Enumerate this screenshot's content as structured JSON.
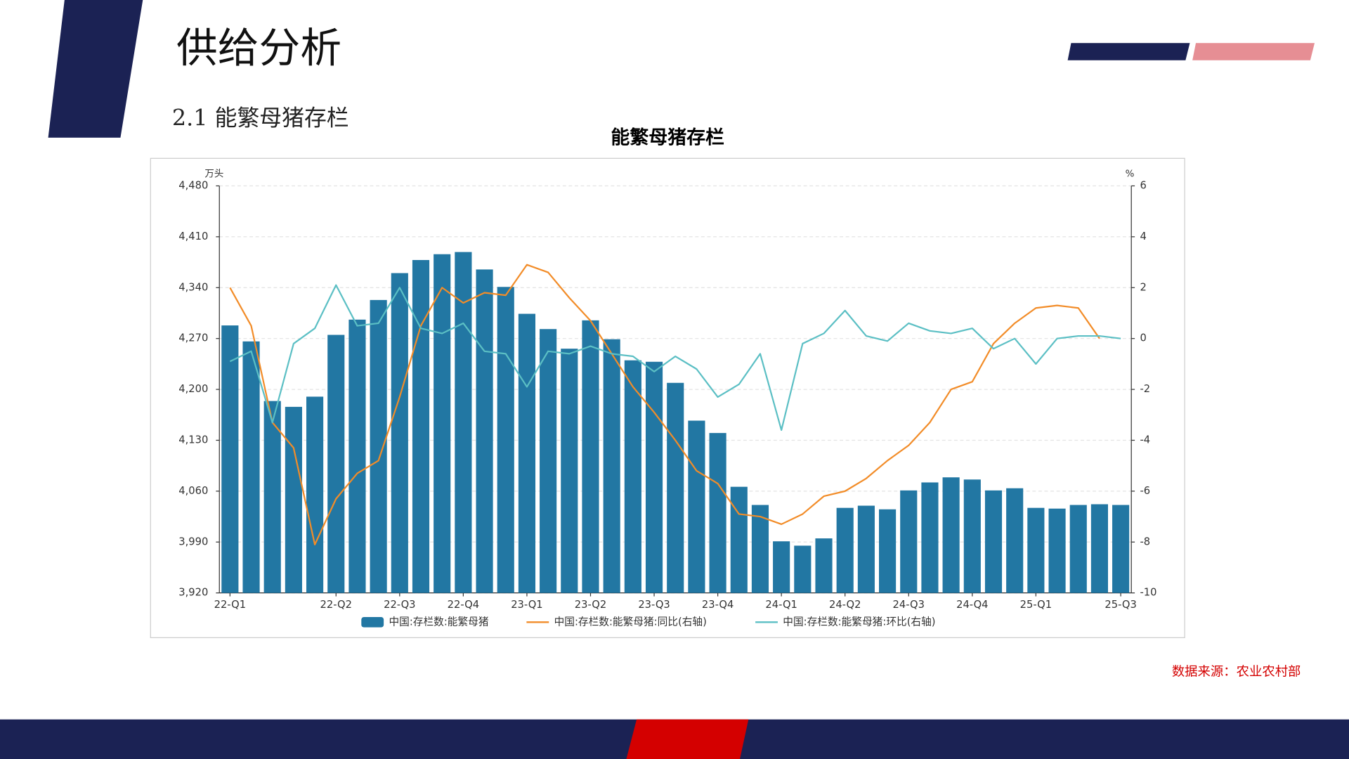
{
  "slide": {
    "title": "供给分析",
    "section": "2.1 能繁母猪存栏",
    "source": "数据来源：农业农村部"
  },
  "chart_data": {
    "type": "bar_line",
    "title": "能繁母猪存栏",
    "y_unit": "万头",
    "y2_unit": "%",
    "categories": [
      "22-Q1",
      null,
      null,
      null,
      null,
      "22-Q2",
      null,
      null,
      "22-Q3",
      null,
      null,
      "22-Q4",
      null,
      null,
      "23-Q1",
      null,
      null,
      "23-Q2",
      null,
      null,
      "23-Q3",
      null,
      null,
      "23-Q4",
      null,
      null,
      "24-Q1",
      null,
      null,
      "24-Q2",
      null,
      null,
      "24-Q3",
      null,
      null,
      "24-Q4",
      null,
      null,
      "25-Q1",
      null,
      null,
      null,
      "25-Q3"
    ],
    "series": [
      {
        "name": "中国:存栏数:能繁母猪",
        "type": "bar",
        "color": "#2277a3",
        "values": [
          4288,
          4266,
          4184,
          4176,
          4190,
          4275,
          4296,
          4323,
          4360,
          4378,
          4386,
          4389,
          4365,
          4341,
          4304,
          4283,
          4256,
          4295,
          4269,
          4240,
          4238,
          4209,
          4157,
          4140,
          4066,
          4041,
          3991,
          3985,
          3995,
          4037,
          4040,
          4035,
          4061,
          4072,
          4079,
          4076,
          4061,
          4064,
          4037,
          4036,
          4041,
          4042,
          4041
        ]
      },
      {
        "name": "中国:存栏数:能繁母猪:同比(右轴)",
        "type": "line",
        "axis": "y2",
        "color": "#f28c28",
        "values": [
          2.0,
          0.5,
          -3.3,
          -4.3,
          -8.1,
          -6.3,
          -5.3,
          -4.8,
          -2.3,
          0.5,
          2.0,
          1.4,
          1.8,
          1.7,
          2.9,
          2.6,
          1.6,
          0.7,
          -0.6,
          -1.9,
          -2.9,
          -4.0,
          -5.2,
          -5.7,
          -6.9,
          -7.0,
          -7.3,
          -6.9,
          -6.2,
          -6.0,
          -5.5,
          -4.8,
          -4.2,
          -3.3,
          -2.0,
          -1.7,
          -0.2,
          0.6,
          1.2,
          1.3,
          1.2,
          0.0,
          null
        ]
      },
      {
        "name": "中国:存栏数:能繁母猪:环比(右轴)",
        "type": "line",
        "axis": "y2",
        "color": "#5bbfc4",
        "values": [
          -0.9,
          -0.5,
          -3.3,
          -0.2,
          0.4,
          2.1,
          0.5,
          0.6,
          2.0,
          0.4,
          0.2,
          0.6,
          -0.5,
          -0.6,
          -1.9,
          -0.5,
          -0.6,
          -0.3,
          -0.6,
          -0.7,
          -1.3,
          -0.7,
          -1.2,
          -2.3,
          -1.8,
          -0.6,
          -3.6,
          -0.2,
          0.2,
          1.1,
          0.1,
          -0.1,
          0.6,
          0.3,
          0.2,
          0.4,
          -0.4,
          0.0,
          -1.0,
          0.0,
          0.1,
          0.1,
          0.0
        ]
      }
    ],
    "ylim": [
      3920,
      4480
    ],
    "yticks": [
      {
        "value": 3920,
        "label": "3,920"
      },
      {
        "value": 3990,
        "label": "3,990"
      },
      {
        "value": 4060,
        "label": "4,060"
      },
      {
        "value": 4130,
        "label": "4,130"
      },
      {
        "value": 4200,
        "label": "4,200"
      },
      {
        "value": 4270,
        "label": "4,270"
      },
      {
        "value": 4340,
        "label": "4,340"
      },
      {
        "value": 4410,
        "label": "4,410"
      },
      {
        "value": 4480,
        "label": "4,480"
      }
    ],
    "y2lim": [
      -10,
      6
    ],
    "y2ticks": [
      -10,
      -8,
      -6,
      -4,
      -2,
      0,
      2,
      4,
      6
    ],
    "grid": true
  }
}
